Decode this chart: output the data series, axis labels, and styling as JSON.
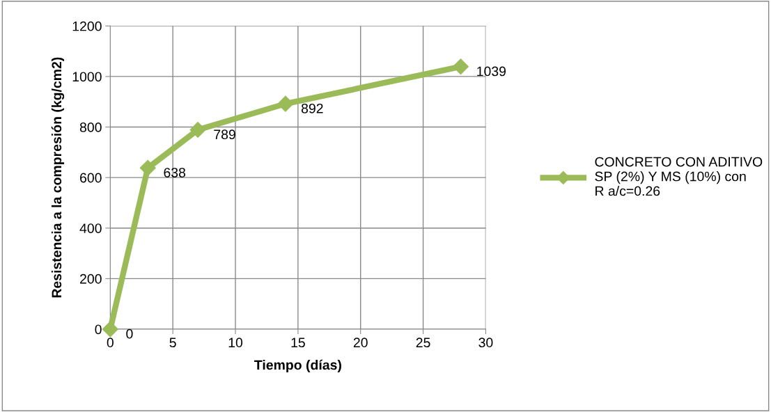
{
  "chart_data": {
    "type": "line",
    "xlabel": "Tiempo (días)",
    "ylabel": "Resistencia a la compresión (kg/cm2)",
    "x": [
      0,
      3,
      7,
      14,
      28
    ],
    "series": [
      {
        "name": "CONCRETO CON ADITIVO\nSP (2%) Y MS (10%) con\nR a/c=0.26",
        "color": "#9bbb59",
        "values": [
          0,
          638,
          789,
          892,
          1039
        ]
      }
    ],
    "xlim": [
      0,
      30
    ],
    "xticks": [
      0,
      5,
      10,
      15,
      20,
      25,
      30
    ],
    "ylim": [
      0,
      1200
    ],
    "yticks": [
      0,
      200,
      400,
      600,
      800,
      1000,
      1200
    ],
    "grid": true,
    "legend": "right",
    "marker": "diamond",
    "line_style": "solid",
    "data_labels": true
  }
}
